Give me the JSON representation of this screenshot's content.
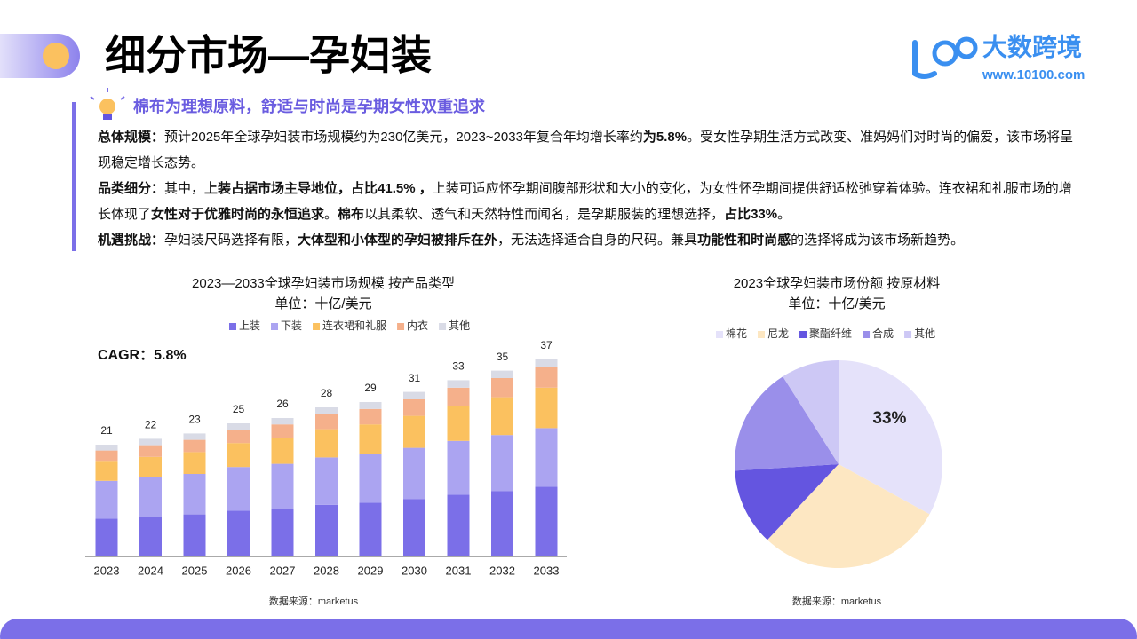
{
  "header": {
    "title": "细分市场—孕妇装",
    "brand": "大数跨境",
    "url": "www.10100.com"
  },
  "subtitle": "棉布为理想原料，舒适与时尚是孕期女性双重追求",
  "paragraphs": [
    [
      {
        "text": "总体规模：",
        "bold": true
      },
      {
        "text": "预计2025年全球孕妇装市场规模约为230亿美元，2023~2033年复合年均增长率约",
        "bold": false
      },
      {
        "text": "为5.8%",
        "bold": true
      },
      {
        "text": "。受女性孕期生活方式改变、准妈妈们对时尚的偏爱，该市场将呈现稳定增长态势。",
        "bold": false
      }
    ],
    [
      {
        "text": "品类细分：",
        "bold": true
      },
      {
        "text": "其中，",
        "bold": false
      },
      {
        "text": "上装占据市场主导地位，占比41.5% ，",
        "bold": true
      },
      {
        "text": "上装可适应怀孕期间腹部形状和大小的变化，为女性怀孕期间提供舒适松弛穿着体验。连衣裙和礼服市场的增长体现了",
        "bold": false
      },
      {
        "text": "女性对于优雅时尚的永恒追求",
        "bold": true
      },
      {
        "text": "。",
        "bold": false
      },
      {
        "text": "棉布",
        "bold": true
      },
      {
        "text": "以其柔软、透气和天然特性而闻名，是孕期服装的理想选择，",
        "bold": false
      },
      {
        "text": "占比33%",
        "bold": true
      },
      {
        "text": "。",
        "bold": false
      }
    ],
    [
      {
        "text": "机遇挑战：",
        "bold": true
      },
      {
        "text": "孕妇装尺码选择有限，",
        "bold": false
      },
      {
        "text": "大体型和小体型的孕妇被排斥在外",
        "bold": true
      },
      {
        "text": "，无法选择适合自身的尺码。兼具",
        "bold": false
      },
      {
        "text": "功能性和时尚感",
        "bold": true
      },
      {
        "text": "的选择将成为该市场新趋势。",
        "bold": false
      }
    ]
  ],
  "chart_data": [
    {
      "type": "bar",
      "stacked": true,
      "title": "2023—2033全球孕妇装市场规模 按产品类型",
      "subtitle": "单位：十亿/美元",
      "annotation": "CAGR：5.8%",
      "source": "数据来源：marketus",
      "categories": [
        "2023",
        "2024",
        "2025",
        "2026",
        "2027",
        "2028",
        "2029",
        "2030",
        "2031",
        "2032",
        "2033"
      ],
      "series": [
        {
          "name": "上装",
          "color": "#7b6fe8",
          "values": [
            7.1,
            7.5,
            7.9,
            8.6,
            9.0,
            9.7,
            10.1,
            10.8,
            11.6,
            12.3,
            13.1
          ]
        },
        {
          "name": "下装",
          "color": "#aba4f1",
          "values": [
            7.1,
            7.4,
            7.6,
            8.2,
            8.4,
            8.9,
            9.1,
            9.6,
            10.1,
            10.5,
            11.0
          ]
        },
        {
          "name": "连衣裙和礼服",
          "color": "#fbc15f",
          "values": [
            3.6,
            3.8,
            4.1,
            4.5,
            4.8,
            5.3,
            5.6,
            6.0,
            6.6,
            7.1,
            7.6
          ]
        },
        {
          "name": "内衣",
          "color": "#f5b08b",
          "values": [
            2.1,
            2.2,
            2.3,
            2.5,
            2.6,
            2.8,
            2.9,
            3.1,
            3.4,
            3.6,
            3.8
          ]
        },
        {
          "name": "其他",
          "color": "#d9dbe6",
          "values": [
            1.1,
            1.2,
            1.2,
            1.2,
            1.2,
            1.3,
            1.3,
            1.4,
            1.4,
            1.4,
            1.5
          ]
        }
      ],
      "totals": [
        21,
        22,
        23,
        25,
        26,
        28,
        29,
        31,
        33,
        35,
        37
      ]
    },
    {
      "type": "pie",
      "title": "2023全球孕妇装市场份额 按原材料",
      "subtitle": "单位：十亿/美元",
      "source": "数据来源：marketus",
      "categories": [
        "棉花",
        "尼龙",
        "聚酯纤维",
        "合成",
        "其他"
      ],
      "values": [
        33,
        29,
        12,
        17,
        9
      ],
      "value_labels": [
        "33%",
        null,
        null,
        null,
        null
      ],
      "colors": [
        "#e5e2fa",
        "#fde7c2",
        "#6455e0",
        "#9a8fea",
        "#cdc8f5"
      ]
    }
  ]
}
